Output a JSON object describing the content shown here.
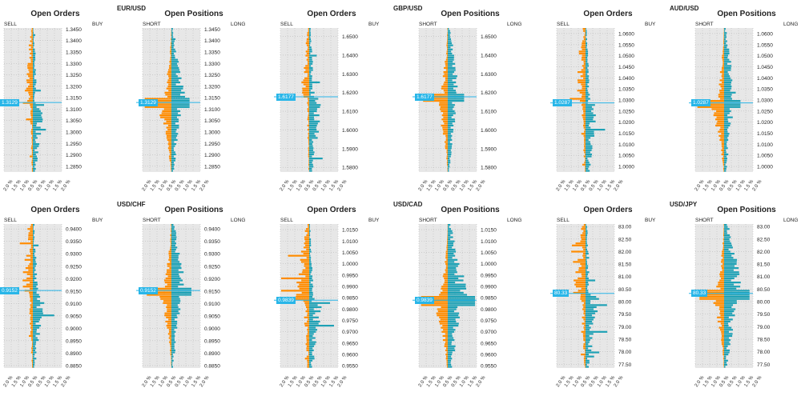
{
  "colors": {
    "sell": "#ff8c00",
    "buy": "#1ea1b5",
    "price_line": "#29b6e8",
    "bg": "#e7e7e7",
    "grid": "#bbbbbb"
  },
  "labels": {
    "orders_title": "Open Orders",
    "positions_title": "Open Positions",
    "sell": "SELL",
    "buy": "BUY",
    "short": "SHORT",
    "long": "LONG",
    "x_ticks": [
      "2.0 %",
      "1.5 %",
      "1.0 %",
      "0.5 %",
      "0.5 %",
      "1.0 %",
      "1.5 %",
      "2.0 %"
    ]
  },
  "chart_data": [
    {
      "type": "bar",
      "pair": "EUR/USD",
      "current_price": "1.3129",
      "price_value": 1.3129,
      "ylim": [
        1.2825,
        1.3455
      ],
      "y_ticks": [
        "1.3450",
        "1.3400",
        "1.3350",
        "1.3300",
        "1.3250",
        "1.3200",
        "1.3150",
        "1.3100",
        "1.3050",
        "1.3000",
        "1.2950",
        "1.2900",
        "1.2850"
      ],
      "orders": {
        "sell_scale": 0.3,
        "buy_scale": 0.4,
        "sell_pos_scale": 1.3,
        "buy_pos_scale": 1.0
      }
    },
    {
      "type": "bar",
      "pair": "GBP/USD",
      "current_price": "1.6177",
      "price_value": 1.6177,
      "ylim": [
        1.5775,
        1.6545
      ],
      "y_ticks": [
        "1.6500",
        "1.6400",
        "1.6300",
        "1.6200",
        "1.6100",
        "1.6000",
        "1.5900",
        "1.5800"
      ],
      "orders": {
        "sell_scale": 0.25,
        "buy_scale": 0.5,
        "sell_pos_scale": 1.2,
        "buy_pos_scale": 0.9
      }
    },
    {
      "type": "bar",
      "pair": "AUD/USD",
      "current_price": "1.0287",
      "price_value": 1.0287,
      "ylim": [
        0.9975,
        1.0625
      ],
      "y_ticks": [
        "1.0600",
        "1.0550",
        "1.0500",
        "1.0450",
        "1.0400",
        "1.0350",
        "1.0300",
        "1.0250",
        "1.0200",
        "1.0150",
        "1.0100",
        "1.0050",
        "1.0000"
      ],
      "orders": {
        "sell_scale": 0.35,
        "buy_scale": 0.45,
        "sell_pos_scale": 1.3,
        "buy_pos_scale": 0.9
      }
    },
    {
      "type": "bar",
      "pair": "USD/CHF",
      "current_price": "0.9152",
      "price_value": 0.9152,
      "ylim": [
        0.884,
        0.942
      ],
      "y_ticks": [
        "0.9400",
        "0.9350",
        "0.9300",
        "0.9250",
        "0.9200",
        "0.9150",
        "0.9100",
        "0.9050",
        "0.9000",
        "0.8950",
        "0.8900",
        "0.8850"
      ],
      "orders": {
        "sell_scale": 0.4,
        "buy_scale": 0.45,
        "sell_pos_scale": 1.2,
        "buy_pos_scale": 1.1
      }
    },
    {
      "type": "bar",
      "pair": "USD/CAD",
      "current_price": "0.9839",
      "price_value": 0.9839,
      "ylim": [
        0.954,
        1.0175
      ],
      "y_ticks": [
        "1.0150",
        "1.0100",
        "1.0050",
        "1.0000",
        "0.9950",
        "0.9900",
        "0.9850",
        "0.9800",
        "0.9750",
        "0.9700",
        "0.9650",
        "0.9600",
        "0.9550"
      ],
      "orders": {
        "sell_scale": 0.55,
        "buy_scale": 0.45,
        "sell_pos_scale": 1.3,
        "buy_pos_scale": 1.5
      }
    },
    {
      "type": "bar",
      "pair": "USD/JPY",
      "current_price": "80.33",
      "price_value": 80.33,
      "ylim": [
        77.35,
        83.1
      ],
      "y_ticks": [
        "83.00",
        "82.50",
        "82.00",
        "81.50",
        "81.00",
        "80.50",
        "80.00",
        "79.50",
        "79.00",
        "78.50",
        "78.00",
        "77.50"
      ],
      "orders": {
        "sell_scale": 0.45,
        "buy_scale": 0.5,
        "sell_pos_scale": 1.2,
        "buy_pos_scale": 1.4
      }
    }
  ]
}
